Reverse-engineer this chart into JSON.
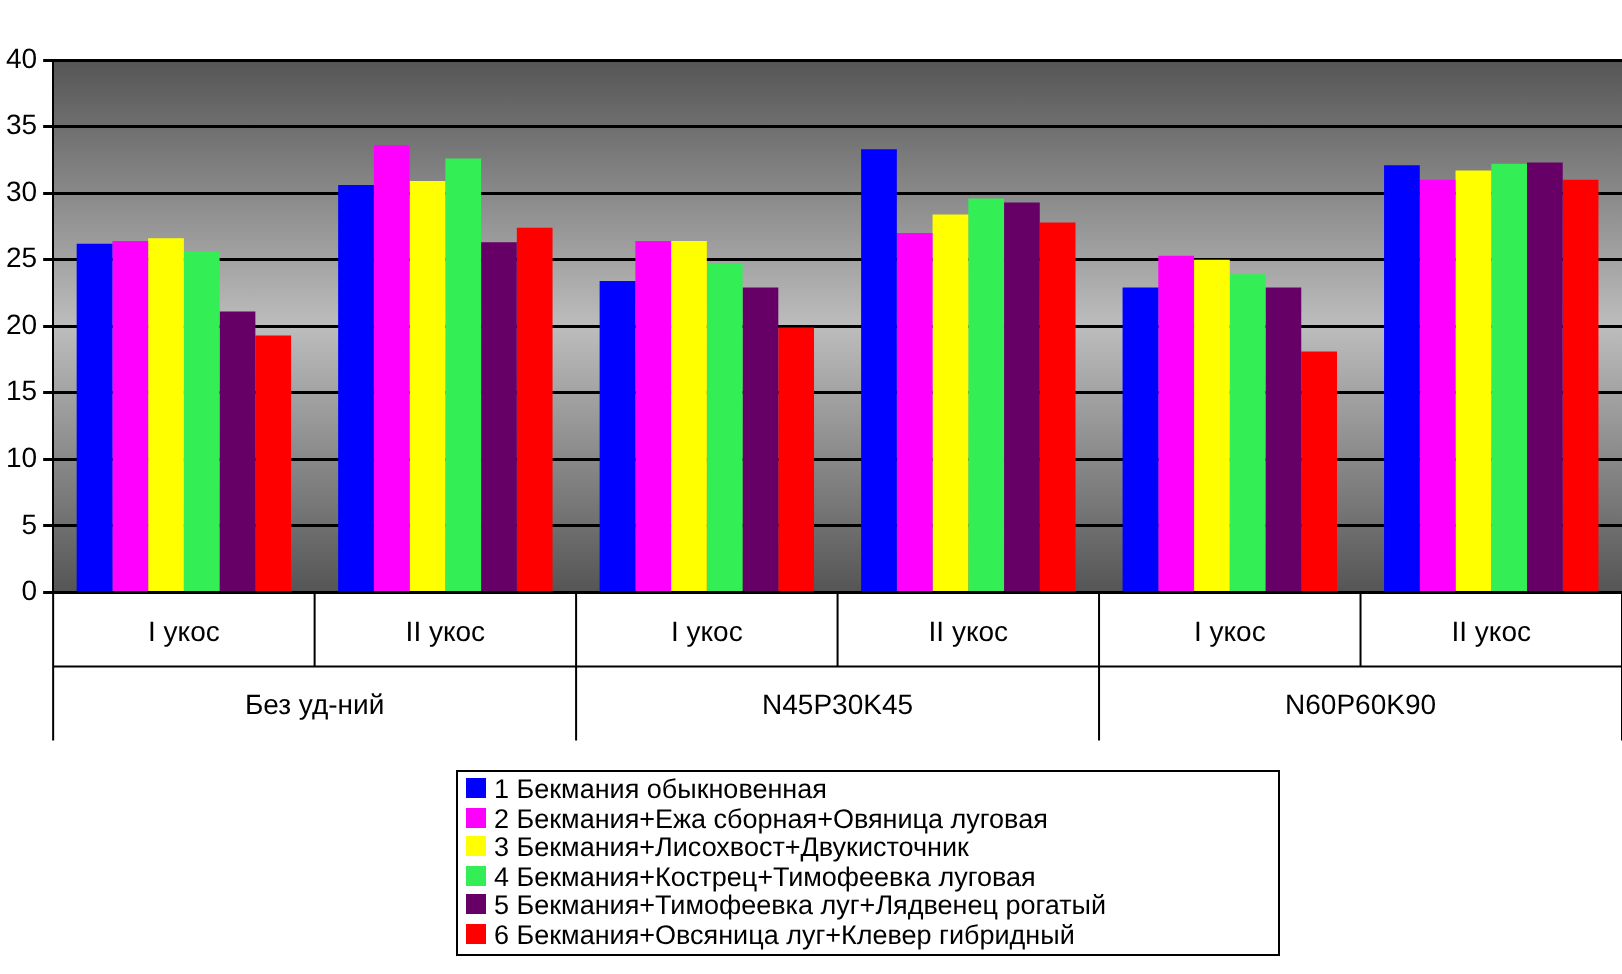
{
  "chart_data": {
    "type": "bar",
    "categories": [
      "I укос",
      "II укос",
      "I укос",
      "II укос",
      "I укос",
      "II укос"
    ],
    "annotations": [
      "Без уд-ний",
      "N45P30K45",
      "N60P60K90"
    ],
    "series": [
      {
        "name": "1 Бекмания обыкновенная",
        "color": "#0000ff",
        "values": [
          26.2,
          30.6,
          23.4,
          33.3,
          22.9,
          32.1
        ]
      },
      {
        "name": "2 Бекмания+Ежа сборная+Овяница луговая",
        "color": "#ff00ff",
        "values": [
          26.4,
          33.6,
          26.4,
          27.0,
          25.3,
          31.0
        ]
      },
      {
        "name": "3 Бекмания+Лисохвост+Двукисточник",
        "color": "#ffff00",
        "values": [
          26.6,
          30.9,
          26.4,
          28.4,
          25.0,
          31.7
        ]
      },
      {
        "name": "4 Бекмания+Кострец+Тимофеевка луговая",
        "color": "#33ee55",
        "values": [
          25.6,
          32.6,
          24.7,
          29.6,
          23.9,
          32.2
        ]
      },
      {
        "name": "5 Бекмания+Тимофеевка луг+Лядвенец рогатый",
        "color": "#660066",
        "values": [
          21.1,
          26.3,
          22.9,
          29.3,
          22.9,
          32.3
        ]
      },
      {
        "name": "6 Бекмания+Овсяница луг+Клевер гибридный",
        "color": "#ff0000",
        "values": [
          19.3,
          27.4,
          19.9,
          27.8,
          18.1,
          31.0
        ]
      }
    ],
    "ylim": [
      0,
      40
    ],
    "yticks": [
      0,
      5,
      10,
      15,
      20,
      25,
      30,
      35,
      40
    ],
    "grid": "y",
    "legend": "bottom"
  }
}
